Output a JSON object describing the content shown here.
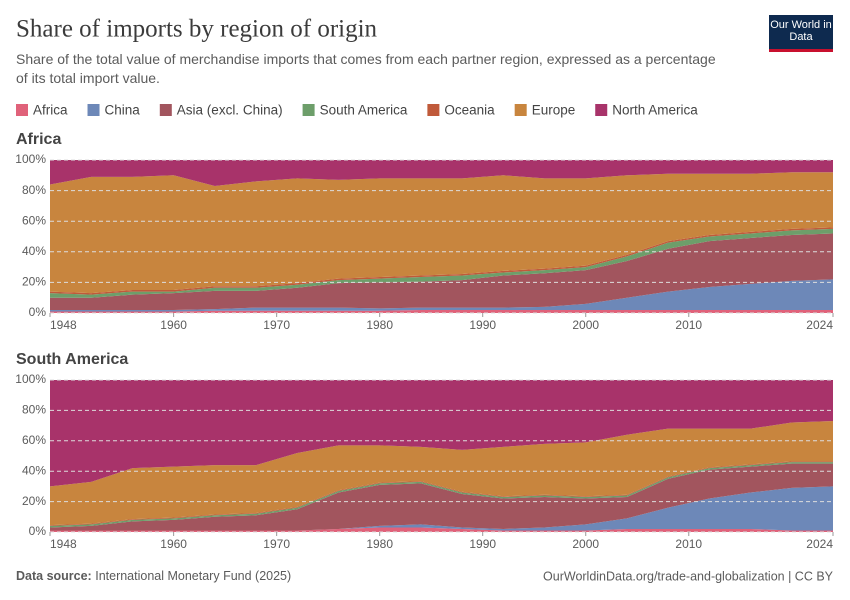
{
  "header": {
    "title": "Share of imports by region of origin",
    "subtitle": "Share of the total value of merchandise imports that comes from each partner region, expressed as a percentage of its total import value.",
    "logo": "Our World in Data"
  },
  "footer": {
    "source_label": "Data source:",
    "source": "International Monetary Fund (2025)",
    "url": "OurWorldinData.org/trade-and-globalization | CC BY"
  },
  "chart_data": [
    {
      "type": "stacked_area",
      "title": "Africa",
      "x": [
        1948,
        1952,
        1956,
        1960,
        1964,
        1968,
        1972,
        1976,
        1980,
        1984,
        1988,
        1992,
        1996,
        2000,
        2004,
        2008,
        2012,
        2016,
        2020,
        2024
      ],
      "xlim": [
        1948,
        2024
      ],
      "xticks": [
        1948,
        1960,
        1970,
        1980,
        1990,
        2000,
        2010,
        2024
      ],
      "ylim": [
        0,
        100
      ],
      "yticks": [
        {
          "value": 0,
          "label": "0%"
        },
        {
          "value": 20,
          "label": "20%"
        },
        {
          "value": 40,
          "label": "40%"
        },
        {
          "value": 60,
          "label": "60%"
        },
        {
          "value": 80,
          "label": "80%"
        },
        {
          "value": 100,
          "label": "100%"
        }
      ],
      "grid": true,
      "series": [
        {
          "name": "Africa",
          "color": "#e0627a",
          "values": [
            1,
            1,
            1,
            1,
            1.5,
            1.5,
            1.5,
            1.5,
            1.5,
            2,
            2,
            2,
            2,
            2,
            2,
            2,
            2,
            2,
            2,
            2
          ]
        },
        {
          "name": "China",
          "color": "#6d88b8",
          "values": [
            1,
            1,
            1,
            1,
            1,
            2,
            2,
            2,
            1.5,
            1.5,
            1.5,
            1.5,
            2,
            4,
            8,
            12,
            15,
            17,
            19,
            20
          ]
        },
        {
          "name": "Asia (excl. China)",
          "color": "#a2555e",
          "values": [
            8,
            8,
            10,
            11,
            12,
            11,
            13,
            16,
            17,
            17,
            18,
            21,
            22,
            22,
            24,
            28,
            30,
            30,
            30,
            30
          ]
        },
        {
          "name": "South America",
          "color": "#6d9e6a",
          "values": [
            3,
            2,
            2,
            1,
            2,
            2,
            2,
            2,
            2.5,
            3,
            3,
            2,
            2,
            2,
            3,
            4,
            3,
            3,
            3,
            3
          ]
        },
        {
          "name": "Oceania",
          "color": "#c05a3a",
          "values": [
            1,
            1,
            1,
            1,
            1,
            1,
            1,
            1,
            1,
            1,
            1,
            1,
            1,
            1,
            1,
            1,
            1,
            1,
            1,
            1
          ]
        },
        {
          "name": "Europe",
          "color": "#c8853e",
          "values": [
            70,
            76,
            74,
            75,
            65.5,
            68.5,
            68.5,
            64.5,
            64.5,
            63.5,
            62.5,
            62.5,
            59,
            57,
            52,
            44,
            40,
            38,
            37,
            36
          ]
        },
        {
          "name": "North America",
          "color": "#a8336a",
          "values": [
            16,
            11,
            11,
            10,
            17,
            14,
            12,
            13,
            12,
            12,
            12,
            10,
            12,
            12,
            10,
            9,
            9,
            9,
            8,
            8
          ]
        }
      ]
    },
    {
      "type": "stacked_area",
      "title": "South America",
      "x": [
        1948,
        1952,
        1956,
        1960,
        1964,
        1968,
        1972,
        1976,
        1980,
        1984,
        1988,
        1992,
        1996,
        2000,
        2004,
        2008,
        2012,
        2016,
        2020,
        2024
      ],
      "xlim": [
        1948,
        2024
      ],
      "xticks": [
        1948,
        1960,
        1970,
        1980,
        1990,
        2000,
        2010,
        2024
      ],
      "ylim": [
        0,
        100
      ],
      "yticks": [
        {
          "value": 0,
          "label": "0%"
        },
        {
          "value": 20,
          "label": "20%"
        },
        {
          "value": 40,
          "label": "40%"
        },
        {
          "value": 60,
          "label": "60%"
        },
        {
          "value": 80,
          "label": "80%"
        },
        {
          "value": 100,
          "label": "100%"
        }
      ],
      "grid": true,
      "series": [
        {
          "name": "Africa",
          "color": "#e0627a",
          "values": [
            1,
            1,
            1,
            1,
            1,
            1,
            1,
            2,
            3,
            3,
            2,
            1,
            1,
            1,
            2,
            2,
            2,
            2,
            1,
            1
          ]
        },
        {
          "name": "China",
          "color": "#6d88b8",
          "values": [
            0,
            0,
            0,
            0,
            0,
            0,
            0,
            0,
            1,
            2,
            1,
            1,
            2,
            4,
            7,
            14,
            20,
            24,
            28,
            29
          ]
        },
        {
          "name": "Asia (excl. China)",
          "color": "#a2555e",
          "values": [
            2,
            3,
            6,
            7,
            9,
            10,
            14,
            24,
            27,
            27,
            22,
            20,
            20,
            17,
            14,
            19,
            19,
            17,
            16,
            15
          ]
        },
        {
          "name": "South America",
          "color": "#6d9e6a",
          "values": [
            1,
            1,
            1,
            1,
            1,
            1,
            1,
            1,
            1,
            1,
            1,
            1,
            1,
            1,
            1,
            1,
            1,
            1,
            1,
            1
          ]
        },
        {
          "name": "Oceania",
          "color": "#c05a3a",
          "values": [
            0.5,
            0.5,
            0.5,
            0.5,
            0.5,
            0.5,
            0.5,
            0.5,
            0.5,
            0.5,
            0.5,
            0.5,
            0.5,
            0.5,
            0.5,
            0.5,
            0.5,
            0.5,
            0.5,
            0.5
          ]
        },
        {
          "name": "Europe",
          "color": "#c8853e",
          "values": [
            25.5,
            27.5,
            33.5,
            33.5,
            32.5,
            31.5,
            35.5,
            29.5,
            24.5,
            22.5,
            27.5,
            32.5,
            33.5,
            35.5,
            39.5,
            31.5,
            25.5,
            23.5,
            25.5,
            26.5
          ]
        },
        {
          "name": "North America",
          "color": "#a8336a",
          "values": [
            70,
            67,
            58,
            57,
            56,
            56,
            48,
            43,
            43,
            44,
            46,
            44,
            42,
            41,
            36,
            32,
            32,
            32,
            28,
            27
          ]
        }
      ]
    }
  ]
}
